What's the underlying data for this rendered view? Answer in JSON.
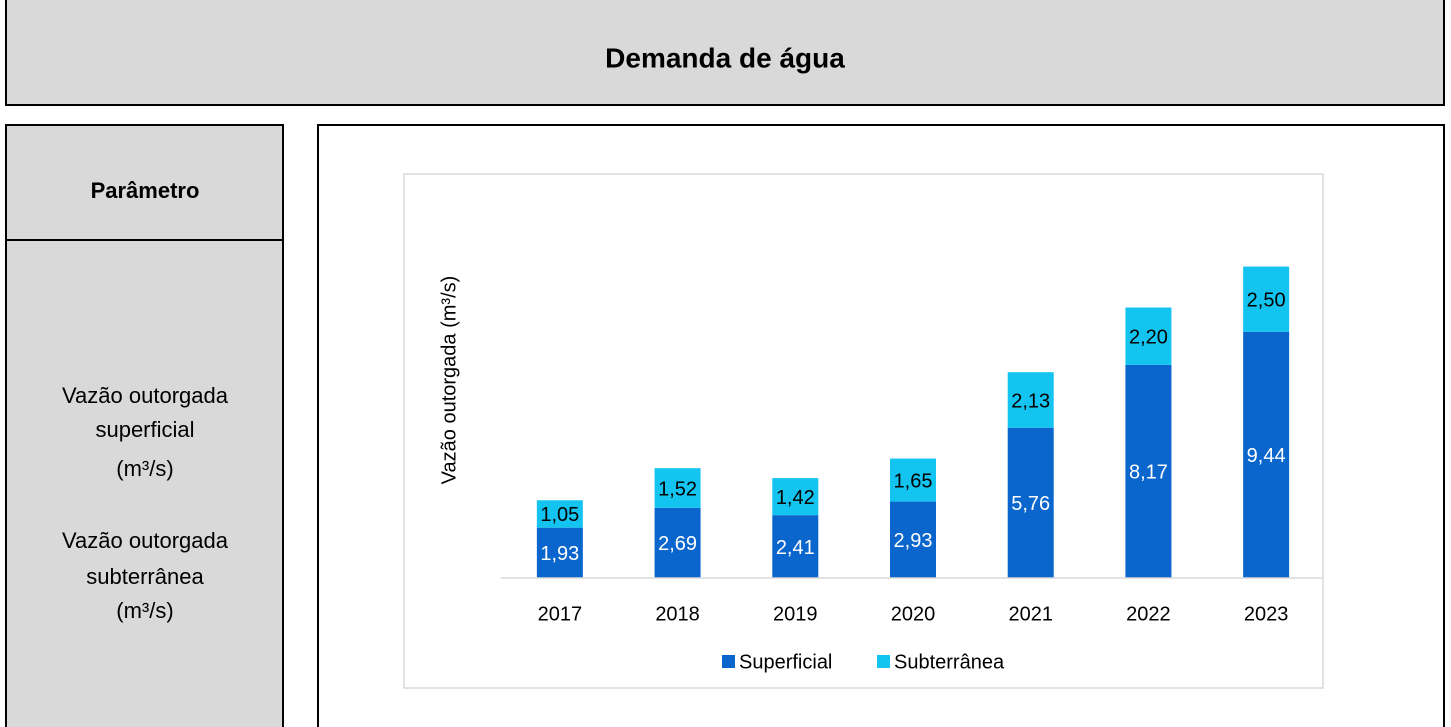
{
  "header": {
    "title": "Demanda de água"
  },
  "parameter": {
    "heading": "Parâmetro",
    "items": [
      [
        "Vazão outorgada",
        "superficial",
        "(m³/s)"
      ],
      [
        "Vazão outorgada",
        "subterrânea",
        "(m³/s)"
      ]
    ]
  },
  "chart_data": {
    "type": "stacked_bar",
    "y_label": "Vazão outorgada (m³/s)",
    "categories": [
      "2017",
      "2018",
      "2019",
      "2020",
      "2021",
      "2022",
      "2023"
    ],
    "series": [
      {
        "name": "Superficial",
        "color": "#0a66cc",
        "values": [
          1.93,
          2.69,
          2.41,
          2.93,
          5.76,
          8.17,
          9.44
        ],
        "value_labels": [
          "1,93",
          "2,69",
          "2,41",
          "2,93",
          "5,76",
          "8,17",
          "9,44"
        ]
      },
      {
        "name": "Subterrânea",
        "color": "#13c4f0",
        "values": [
          1.05,
          1.52,
          1.42,
          1.65,
          2.13,
          2.2,
          2.5
        ],
        "value_labels": [
          "1,05",
          "1,52",
          "1,42",
          "1,65",
          "2,13",
          "2,20",
          "2,50"
        ]
      }
    ],
    "ylim": [
      0,
      12
    ],
    "legend": "bottom"
  }
}
